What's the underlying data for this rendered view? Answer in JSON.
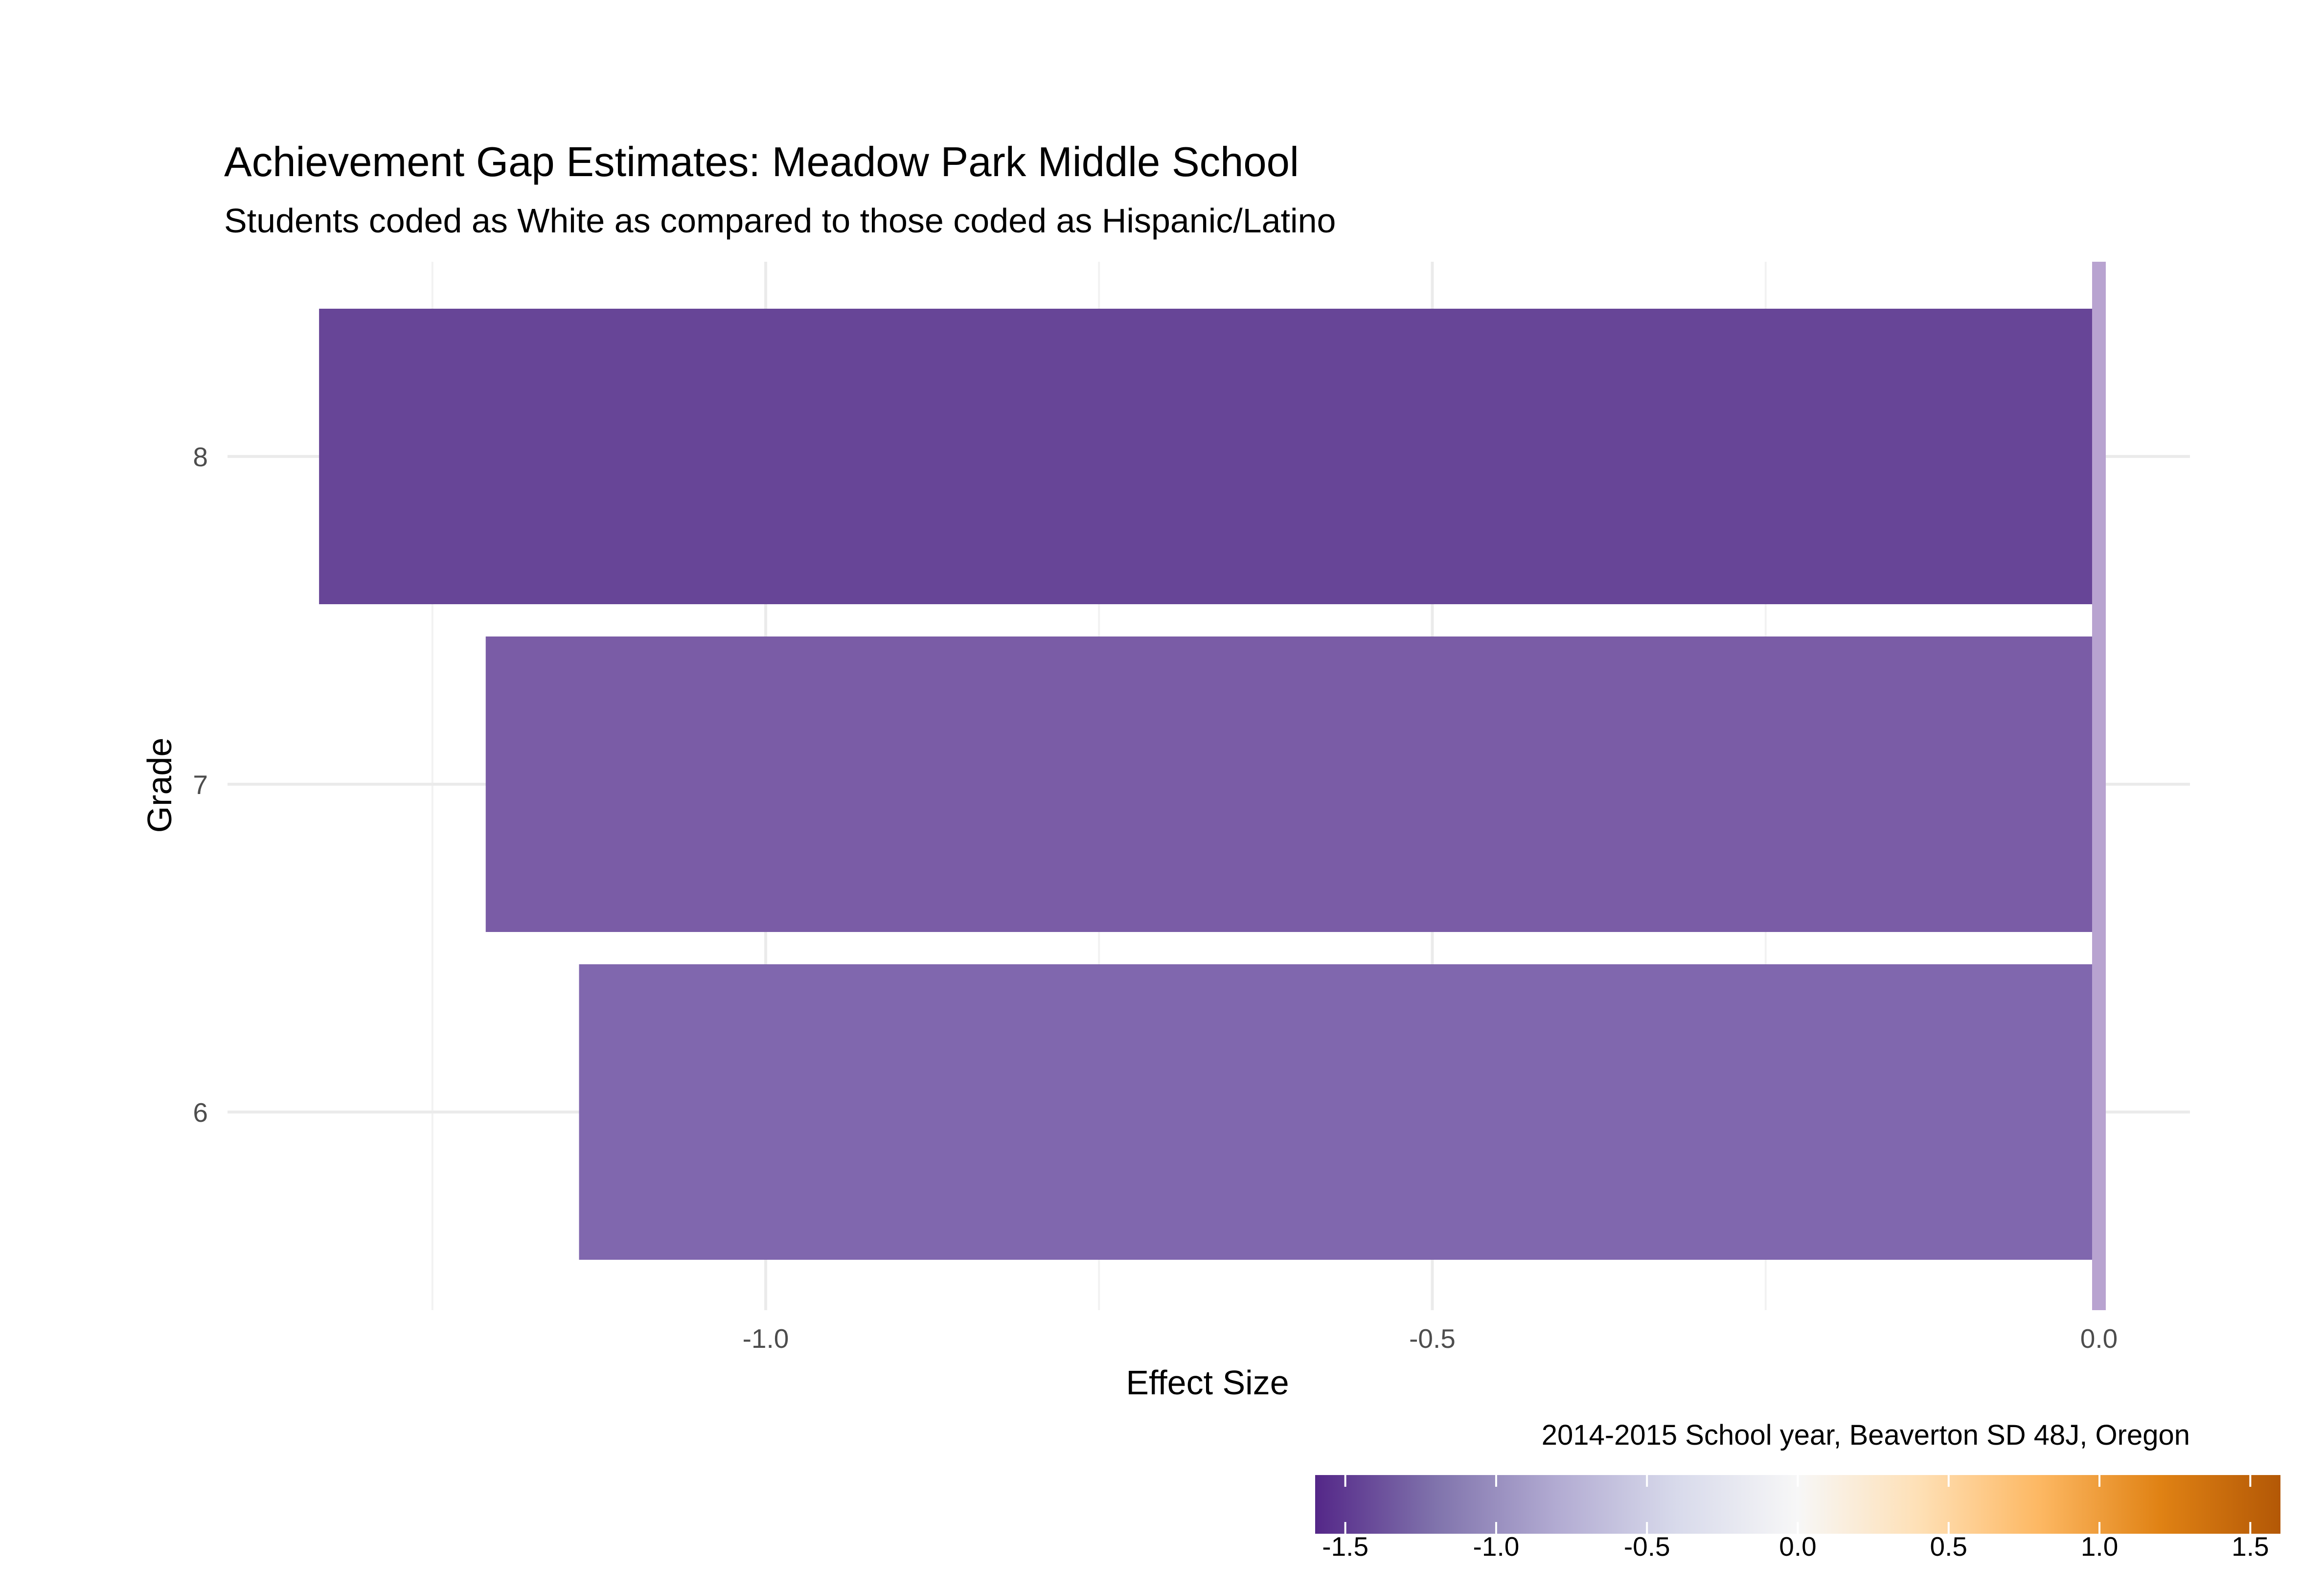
{
  "chart_data": {
    "type": "bar",
    "orientation": "horizontal",
    "title": "Achievement Gap Estimates: Meadow Park Middle School",
    "subtitle": "Students coded as White as compared to those coded as Hispanic/Latino",
    "xlabel": "Effect Size",
    "ylabel": "Grade",
    "caption": "2014-2015 School year, Beaverton SD 48J, Oregon",
    "categories": [
      "6",
      "7",
      "8"
    ],
    "values": [
      -1.14,
      -1.21,
      -1.335
    ],
    "bar_colors": [
      "#8067ae",
      "#7a5ca6",
      "#674597"
    ],
    "xlim": [
      -1.5,
      0.07
    ],
    "x_ticks": [
      {
        "value": -1.0,
        "label": "-1.0"
      },
      {
        "value": -0.5,
        "label": "-0.5"
      },
      {
        "value": 0.0,
        "label": "0.0"
      }
    ],
    "reference_line": {
      "value": 0,
      "color": "#b8a3d0"
    },
    "grid": true,
    "legend": {
      "position": "bottom-right",
      "type": "colorbar",
      "range": [
        -1.6,
        1.6
      ],
      "ticks": [
        {
          "value": -1.5,
          "label": "-1.5"
        },
        {
          "value": -1.0,
          "label": "-1.0"
        },
        {
          "value": -0.5,
          "label": "-0.5"
        },
        {
          "value": 0.0,
          "label": "0.0"
        },
        {
          "value": 0.5,
          "label": "0.5"
        },
        {
          "value": 1.0,
          "label": "1.0"
        },
        {
          "value": 1.5,
          "label": "1.5"
        }
      ],
      "colors": [
        "#542788",
        "#8073ac",
        "#b2abd2",
        "#d8daeb",
        "#f7f7f7",
        "#fee0b6",
        "#fdb863",
        "#e08214",
        "#b35806"
      ]
    }
  }
}
